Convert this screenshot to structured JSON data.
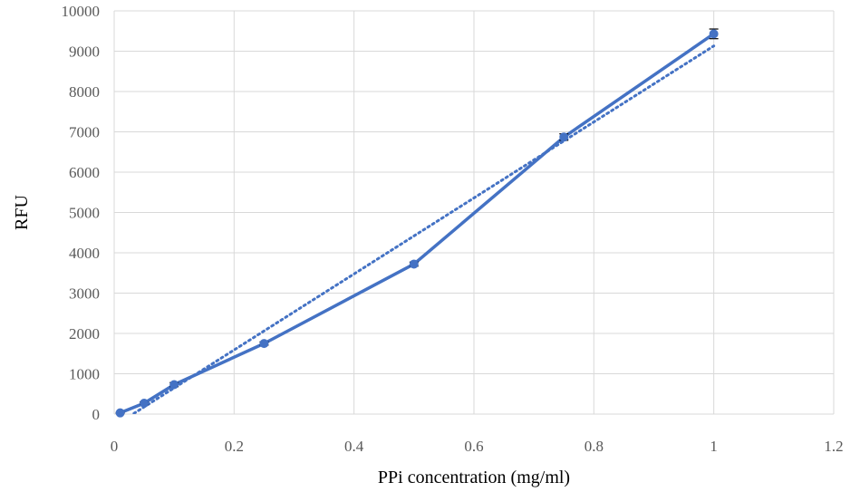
{
  "chart_data": {
    "type": "line",
    "title": "",
    "xlabel": "PPi concentration (mg/ml)",
    "ylabel": "RFU",
    "xlim": [
      0,
      1.2
    ],
    "ylim": [
      0,
      10000
    ],
    "x_ticks": [
      "0",
      "0.2",
      "0.4",
      "0.6",
      "0.8",
      "1",
      "1.2"
    ],
    "y_ticks": [
      "0",
      "1000",
      "2000",
      "3000",
      "4000",
      "5000",
      "6000",
      "7000",
      "8000",
      "9000",
      "10000"
    ],
    "grid": true,
    "legend": "none",
    "series": [
      {
        "x": [
          0.01,
          0.05,
          0.1,
          0.25,
          0.5,
          0.75,
          1.0
        ],
        "y": [
          30,
          270,
          730,
          1750,
          3720,
          6870,
          9430
        ],
        "error": [
          10,
          30,
          50,
          40,
          50,
          80,
          120
        ],
        "color": "#4472c4",
        "line_style": "solid",
        "marker": "circle"
      }
    ],
    "trendline": {
      "type": "linear",
      "x": [
        0.01,
        1.0
      ],
      "y": [
        -200,
        9130
      ],
      "color": "#4472c4",
      "line_style": "dotted"
    }
  }
}
